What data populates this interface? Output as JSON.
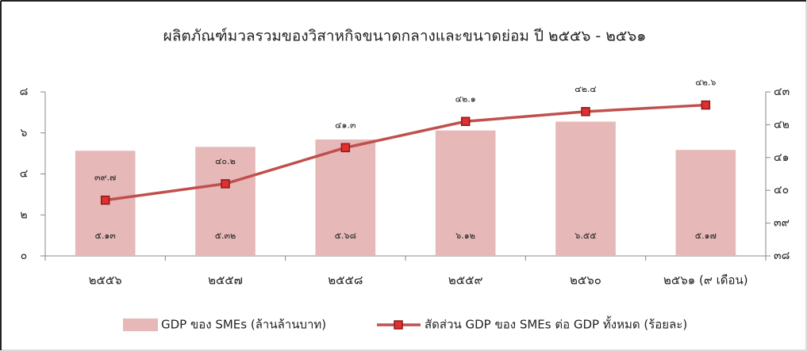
{
  "chart_data": {
    "type": "bar",
    "title": "ผลิตภัณฑ์มวลรวมของวิสาหกิจขนาดกลางและขนาดย่อม  ปี ๒๕๕๖ - ๒๕๖๑",
    "categories": [
      "๒๕๕๖",
      "๒๕๕๗",
      "๒๕๕๘",
      "๒๕๕๙",
      "๒๕๖๐",
      "๒๕๖๑ (๙ เดือน)"
    ],
    "series": [
      {
        "name": "GDP ของ SMEs (ล้านล้านบาท)",
        "type": "bar",
        "color": "#e6b9b8",
        "values": [
          5.13,
          5.32,
          5.68,
          6.12,
          6.55,
          5.17
        ],
        "value_labels": [
          "๕.๑๓",
          "๕.๓๒",
          "๕.๖๘",
          "๖.๑๒",
          "๖.๕๕",
          "๕.๑๗"
        ]
      },
      {
        "name": "สัดส่วน GDP ของ SMEs ต่อ GDP ทั้งหมด (ร้อยละ)",
        "type": "line",
        "axis": "y2",
        "color": "#c0504d",
        "values": [
          39.7,
          40.2,
          41.3,
          42.1,
          42.4,
          42.6
        ],
        "value_labels": [
          "๓๙.๗",
          "๔๐.๒",
          "๔๑.๓",
          "๔๒.๑",
          "๔๒.๔",
          "๔๒.๖"
        ]
      }
    ],
    "ylim": [
      0,
      8
    ],
    "yticks": [
      {
        "value": 0,
        "label": "๐"
      },
      {
        "value": 2,
        "label": "๒"
      },
      {
        "value": 4,
        "label": "๔"
      },
      {
        "value": 6,
        "label": "๖"
      },
      {
        "value": 8,
        "label": "๘"
      }
    ],
    "y2lim": [
      38,
      43
    ],
    "y2ticks": [
      {
        "value": 38,
        "label": "๓๘"
      },
      {
        "value": 39,
        "label": "๓๙"
      },
      {
        "value": 40,
        "label": "๔๐"
      },
      {
        "value": 41,
        "label": "๔๑"
      },
      {
        "value": 42,
        "label": "๔๒"
      },
      {
        "value": 43,
        "label": "๔๓"
      }
    ],
    "legend": "bottom"
  }
}
